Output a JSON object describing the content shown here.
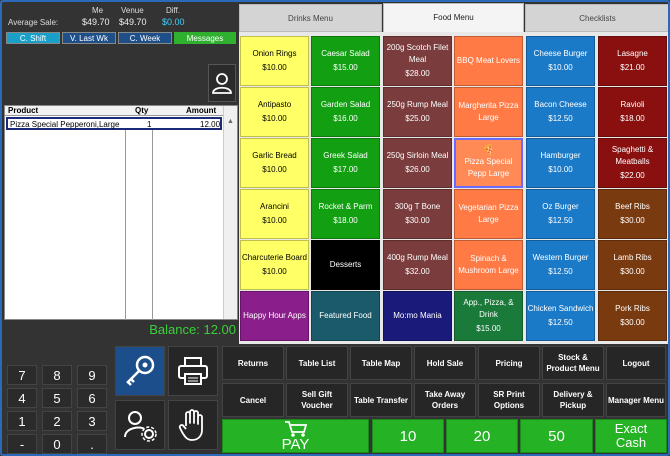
{
  "summary": {
    "col_me": "Me",
    "col_venue": "Venue",
    "col_diff": "Diff.",
    "label": "Average Sale:",
    "me_value": "$49.70",
    "venue_value": "$49.70",
    "diff_value": "$0.00",
    "diff_color": "#40d0ff",
    "buttons": [
      "C. Shift",
      "V. Last Wk",
      "C. Week",
      "Messages"
    ]
  },
  "order": {
    "headers": {
      "product": "Product",
      "qty": "Qty",
      "amount": "Amount"
    },
    "rows": [
      {
        "product": "Pizza Special Pepperoni,Large",
        "qty": "1",
        "amount": "12.00"
      }
    ]
  },
  "balance": "Balance: 12.00",
  "keypad": [
    "7",
    "8",
    "9",
    "4",
    "5",
    "6",
    "1",
    "2",
    "3",
    "-",
    "0",
    "."
  ],
  "tabs": [
    {
      "label": "Drinks Menu",
      "active": false
    },
    {
      "label": "Food Menu",
      "active": true
    },
    {
      "label": "Checklists",
      "active": false
    }
  ],
  "menu": {
    "columns": [
      [
        {
          "name": "Onion Rings",
          "price": "$10.00",
          "bg": "#ffff66",
          "fg": "#000"
        },
        {
          "name": "Antipasto",
          "price": "$10.00",
          "bg": "#ffff66",
          "fg": "#000"
        },
        {
          "name": "Garlic Bread",
          "price": "$10.00",
          "bg": "#ffff66",
          "fg": "#000"
        },
        {
          "name": "Arancini",
          "price": "$10.00",
          "bg": "#ffff66",
          "fg": "#000"
        },
        {
          "name": "Charcuterie Board",
          "price": "$10.00",
          "bg": "#ffff66",
          "fg": "#000"
        },
        {
          "name": "Happy Hour Apps",
          "price": "",
          "bg": "#8a1e8a",
          "fg": "#fff"
        }
      ],
      [
        {
          "name": "Caesar Salad",
          "price": "$15.00",
          "bg": "#12a012",
          "fg": "#fff"
        },
        {
          "name": "Garden Salad",
          "price": "$16.00",
          "bg": "#12a012",
          "fg": "#fff"
        },
        {
          "name": "Greek Salad",
          "price": "$17.00",
          "bg": "#12a012",
          "fg": "#fff"
        },
        {
          "name": "Rocket & Parm",
          "price": "$18.00",
          "bg": "#12a012",
          "fg": "#fff"
        },
        {
          "name": "Desserts",
          "price": "",
          "bg": "#000000",
          "fg": "#fff"
        },
        {
          "name": "Featured Food",
          "price": "",
          "bg": "#1a5a6a",
          "fg": "#fff"
        }
      ],
      [
        {
          "name": "200g Scotch Filet Meal",
          "price": "$28.00",
          "bg": "#7a3c3c",
          "fg": "#fff"
        },
        {
          "name": "250g Rump Meal",
          "price": "$25.00",
          "bg": "#7a3c3c",
          "fg": "#fff"
        },
        {
          "name": "250g Sirloin Meal",
          "price": "$26.00",
          "bg": "#7a3c3c",
          "fg": "#fff"
        },
        {
          "name": "300g T Bone",
          "price": "$30.00",
          "bg": "#7a3c3c",
          "fg": "#fff"
        },
        {
          "name": "400g Rump Meal",
          "price": "$32.00",
          "bg": "#7a3c3c",
          "fg": "#fff"
        },
        {
          "name": "Mo:mo Mania",
          "price": "",
          "bg": "#1a1a7a",
          "fg": "#fff"
        }
      ],
      [
        {
          "name": "BBQ Meat Lovers",
          "price": "",
          "bg": "#ff7a45",
          "fg": "#fff"
        },
        {
          "name": "Margherita Pizza Large",
          "price": "",
          "bg": "#ff7a45",
          "fg": "#fff"
        },
        {
          "name": "Pizza Special Pepp Large",
          "price": "",
          "bg": "#ff8a55",
          "fg": "#fff",
          "selected": true
        },
        {
          "name": "Vegetarian Pizza Large",
          "price": "",
          "bg": "#ff7a45",
          "fg": "#fff"
        },
        {
          "name": "Spinach & Mushroom Large",
          "price": "",
          "bg": "#ff7a45",
          "fg": "#fff"
        },
        {
          "name": "App., Pizza, & Drink",
          "price": "$15.00",
          "bg": "#1a7a3a",
          "fg": "#fff"
        }
      ],
      [
        {
          "name": "Cheese Burger",
          "price": "$10.00",
          "bg": "#1a7ac8",
          "fg": "#fff"
        },
        {
          "name": "Bacon Cheese",
          "price": "$12.50",
          "bg": "#1a7ac8",
          "fg": "#fff"
        },
        {
          "name": "Hamburger",
          "price": "$10.00",
          "bg": "#1a7ac8",
          "fg": "#fff"
        },
        {
          "name": "Oz Burger",
          "price": "$12.50",
          "bg": "#1a7ac8",
          "fg": "#fff"
        },
        {
          "name": "Western Burger",
          "price": "$12.50",
          "bg": "#1a7ac8",
          "fg": "#fff"
        },
        {
          "name": "Chicken Sandwich",
          "price": "$12.50",
          "bg": "#1a7ac8",
          "fg": "#fff"
        }
      ],
      [
        {
          "name": "Lasagne",
          "price": "$21.00",
          "bg": "#8a1010",
          "fg": "#fff"
        },
        {
          "name": "Ravioli",
          "price": "$18.00",
          "bg": "#8a1010",
          "fg": "#fff"
        },
        {
          "name": "Spaghetti & Meatballs",
          "price": "$22.00",
          "bg": "#8a1010",
          "fg": "#fff"
        },
        {
          "name": "Beef Ribs",
          "price": "$30.00",
          "bg": "#7a3a10",
          "fg": "#fff"
        },
        {
          "name": "Lamb Ribs",
          "price": "$30.00",
          "bg": "#7a3a10",
          "fg": "#fff"
        },
        {
          "name": "Pork Ribs",
          "price": "$30.00",
          "bg": "#7a3a10",
          "fg": "#fff"
        }
      ]
    ]
  },
  "actions": [
    [
      "Returns",
      "Table List",
      "Table Map",
      "Hold Sale",
      "Pricing",
      "Stock & Product Menu",
      "Logout"
    ],
    [
      "Cancel",
      "Sell Gift Voucher",
      "Table Transfer",
      "Take Away Orders",
      "SR Print Options",
      "Delivery & Pickup",
      "Manager Menu"
    ]
  ],
  "pay": {
    "label": "PAY",
    "cash10": "10",
    "cash20": "20",
    "cash50": "50",
    "exact": "Exact Cash"
  }
}
